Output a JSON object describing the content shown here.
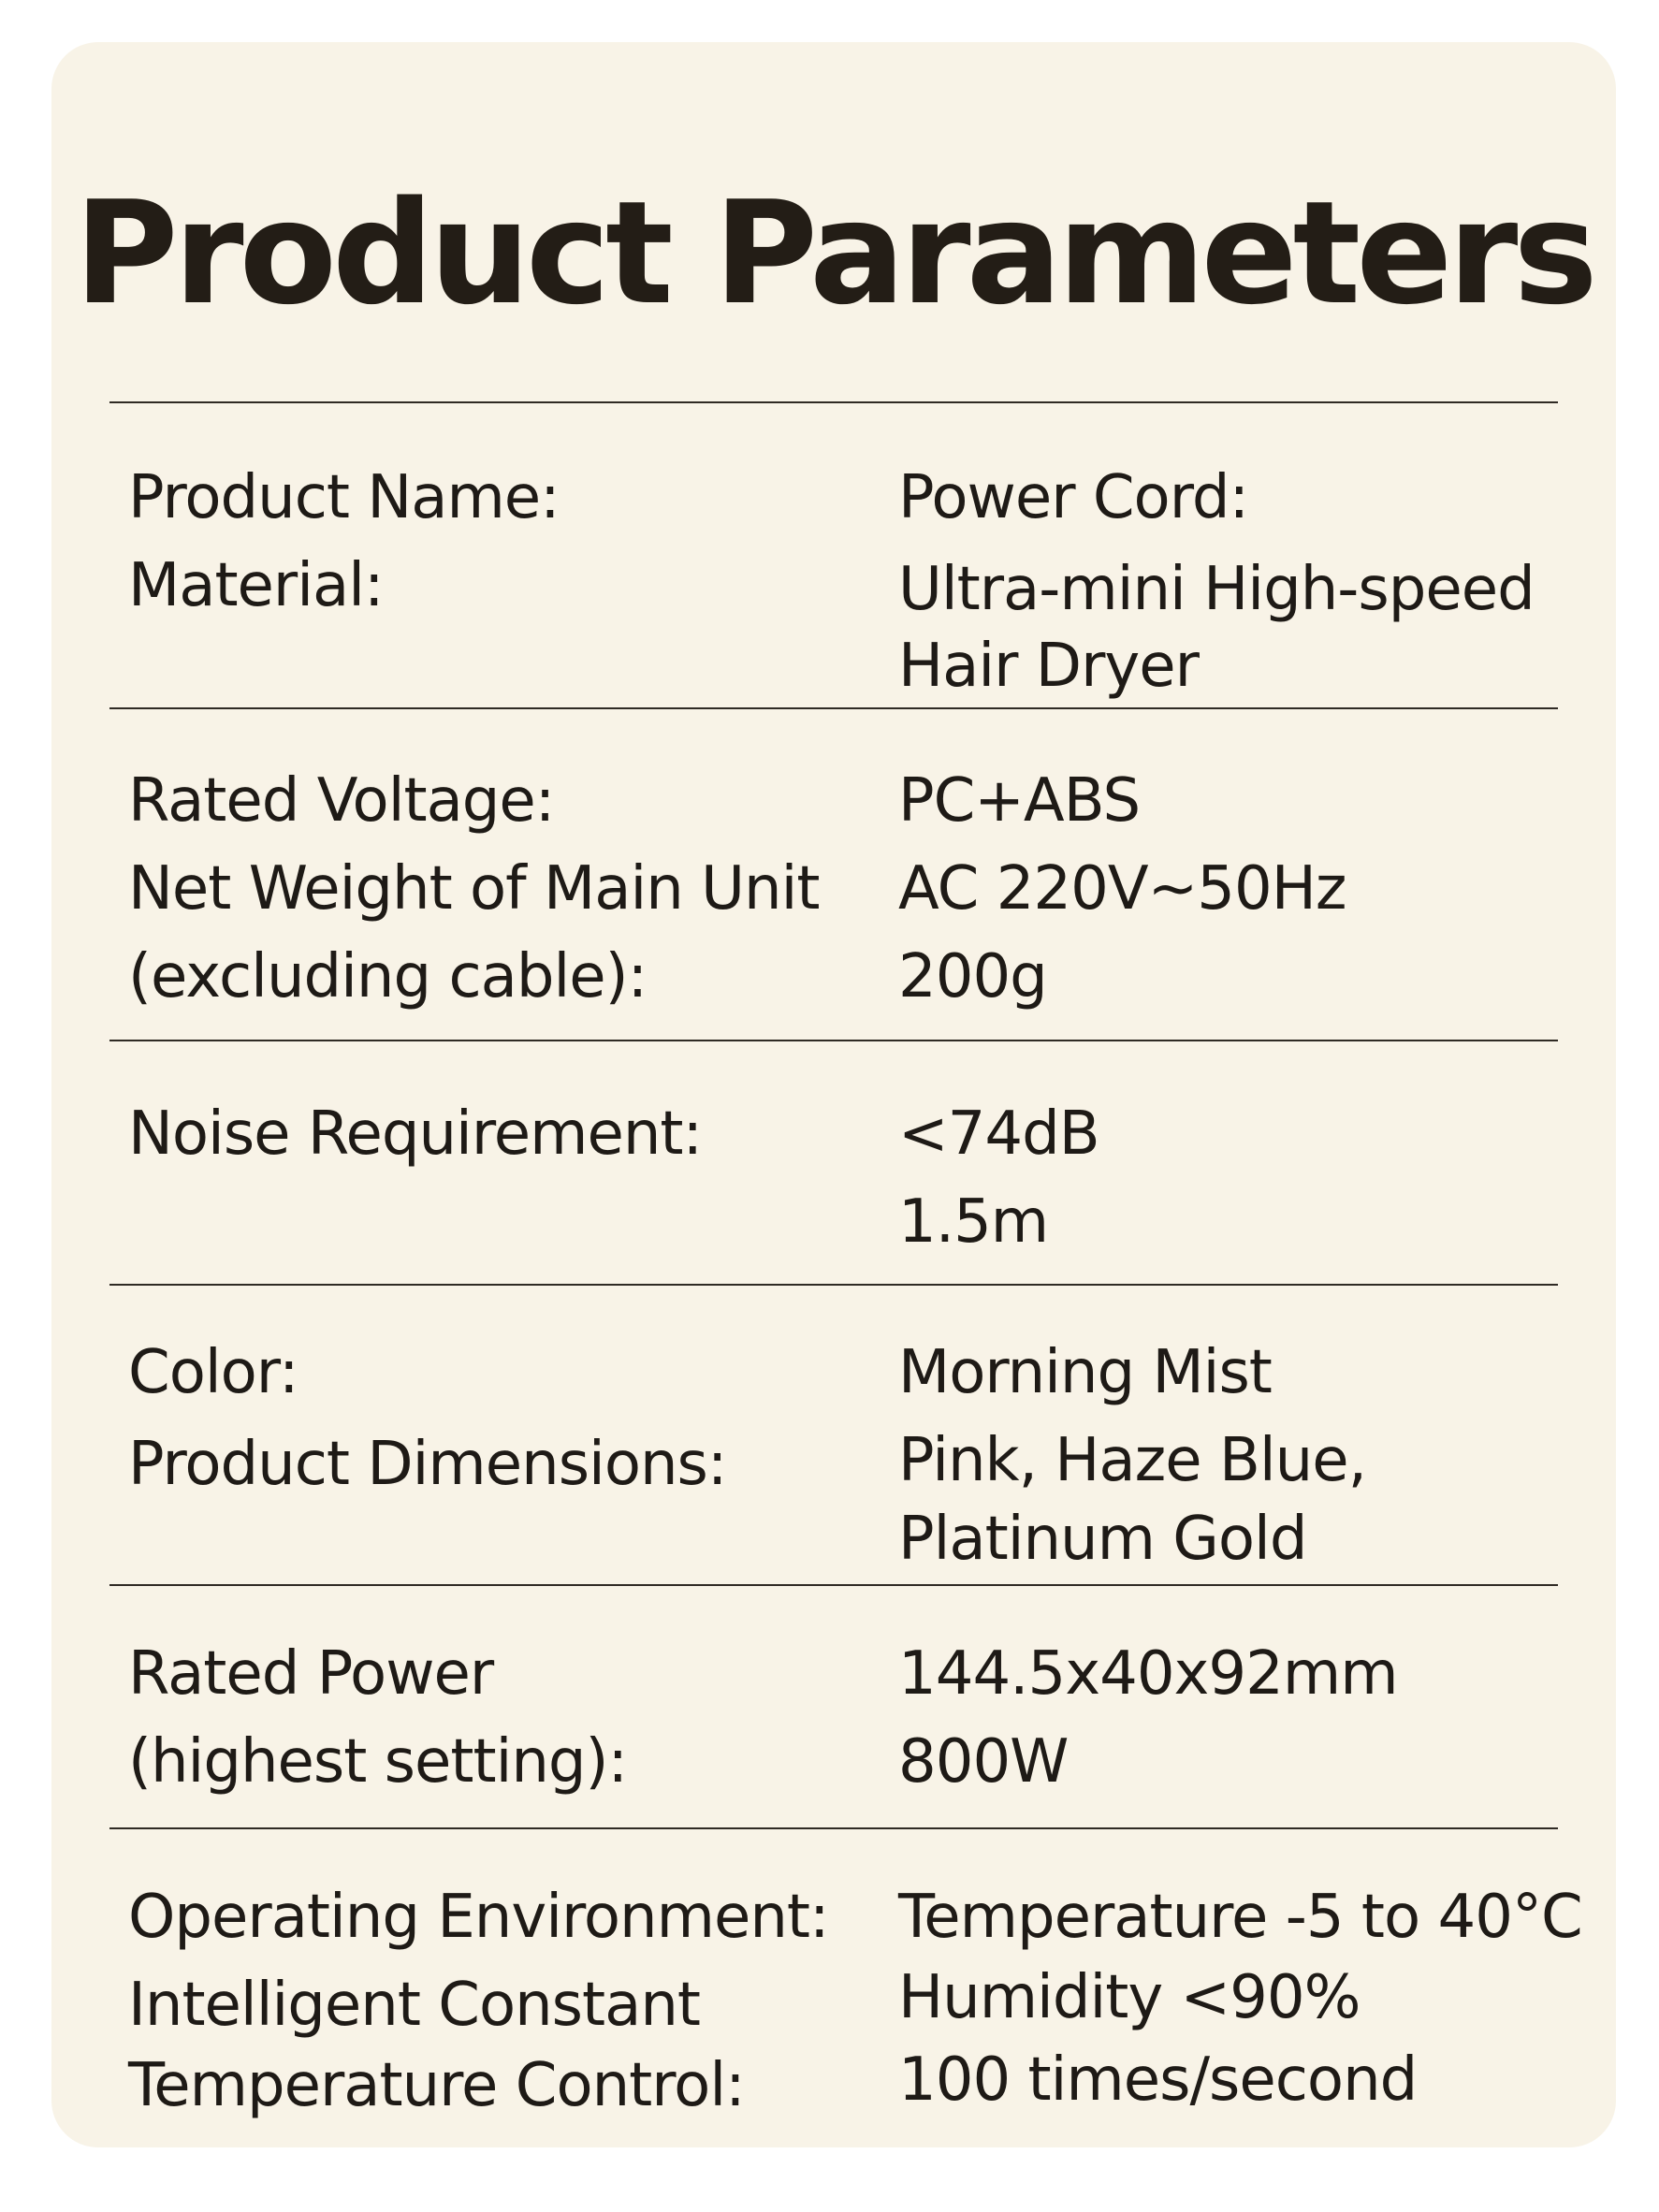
{
  "title": "Product Parameters",
  "rows": [
    {
      "labels": [
        "Product Name:",
        "Material:"
      ],
      "values": [
        "Power Cord:",
        "Ultra-mini High-speed",
        "Hair Dryer"
      ]
    },
    {
      "labels": [
        "Rated Voltage:",
        "Net Weight of Main Unit",
        "(excluding cable):"
      ],
      "values": [
        "PC+ABS",
        "AC 220V~50Hz",
        "200g"
      ]
    },
    {
      "labels": [
        "Noise Requirement:"
      ],
      "values": [
        "<74dB",
        "1.5m"
      ]
    },
    {
      "labels": [
        "Color:",
        "Product Dimensions:"
      ],
      "values": [
        "Morning Mist",
        "Pink, Haze Blue,",
        "Platinum Gold"
      ]
    },
    {
      "labels": [
        "Rated Power",
        "(highest setting):"
      ],
      "values": [
        "144.5x40x92mm",
        "800W"
      ]
    },
    {
      "labels": [
        "Operating Environment:",
        "Intelligent Constant",
        "Temperature Control:"
      ],
      "values": [
        "Temperature -5 to 40°C",
        "Humidity <90%",
        "100 times/second"
      ]
    }
  ]
}
